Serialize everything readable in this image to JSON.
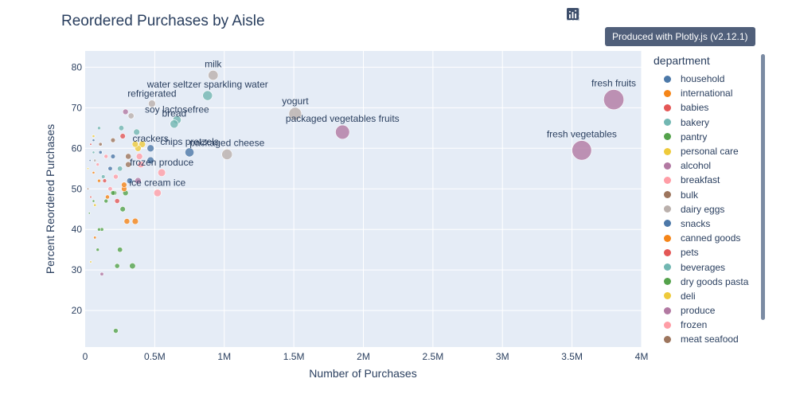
{
  "chart_data": {
    "type": "scatter",
    "title": "Reordered Purchases by Aisle",
    "xlabel": "Number of Purchases",
    "ylabel": "Percent Reordered Purchases",
    "xlim": [
      0,
      4000000
    ],
    "ylim": [
      11,
      84
    ],
    "x_ticks": [
      0,
      500000,
      1000000,
      1500000,
      2000000,
      2500000,
      3000000,
      3500000,
      4000000
    ],
    "x_tick_labels": [
      "0",
      "0.5M",
      "1M",
      "1.5M",
      "2M",
      "2.5M",
      "3M",
      "3.5M",
      "4M"
    ],
    "y_ticks": [
      20,
      30,
      40,
      50,
      60,
      70,
      80
    ],
    "y_tick_labels": [
      "20",
      "30",
      "40",
      "50",
      "60",
      "70",
      "80"
    ],
    "grid": true,
    "legend_title": "department",
    "legend_position": "right",
    "series": [
      {
        "name": "household",
        "color": "#4c78a8",
        "points": [
          [
            110000,
            59
          ],
          [
            180000,
            55
          ],
          [
            60000,
            62
          ],
          [
            35000,
            57
          ]
        ]
      },
      {
        "name": "international",
        "color": "#f58518",
        "points": [
          [
            300000,
            42
          ],
          [
            360000,
            42
          ],
          [
            160000,
            48
          ],
          [
            280000,
            50
          ],
          [
            70000,
            38
          ]
        ]
      },
      {
        "name": "babies",
        "color": "#e45756",
        "points": [
          [
            140000,
            52
          ],
          [
            40000,
            61
          ],
          [
            270000,
            63
          ]
        ]
      },
      {
        "name": "bakery",
        "color": "#72b7b2",
        "points": [
          [
            660000,
            67
          ],
          [
            640000,
            66
          ],
          [
            370000,
            64
          ],
          [
            260000,
            65
          ]
        ]
      },
      {
        "name": "pantry",
        "color": "#54a24b",
        "points": [
          [
            340000,
            31
          ],
          [
            230000,
            31
          ],
          [
            250000,
            35
          ],
          [
            290000,
            49
          ],
          [
            270000,
            45
          ],
          [
            210000,
            49
          ],
          [
            120000,
            40
          ],
          [
            90000,
            35
          ],
          [
            220000,
            15
          ],
          [
            30000,
            44
          ],
          [
            60000,
            47
          ]
        ]
      },
      {
        "name": "personal care",
        "color": "#eeca3b",
        "points": [
          [
            360000,
            61
          ],
          [
            410000,
            61
          ],
          [
            40000,
            32
          ],
          [
            20000,
            55
          ],
          [
            70000,
            46
          ]
        ]
      },
      {
        "name": "alcohol",
        "color": "#b279a2",
        "points": [
          [
            290000,
            69
          ],
          [
            120000,
            29
          ]
        ]
      },
      {
        "name": "breakfast",
        "color": "#ff9da6",
        "points": [
          [
            520000,
            49
          ],
          [
            550000,
            54
          ],
          [
            400000,
            56
          ],
          [
            180000,
            50
          ]
        ]
      },
      {
        "name": "bulk",
        "color": "#9d755d",
        "points": [
          [
            310000,
            56
          ],
          [
            20000,
            50
          ]
        ]
      },
      {
        "name": "dairy eggs",
        "color": "#bab0ac",
        "points": [
          [
            920000,
            78
          ],
          [
            1510000,
            68.5
          ],
          [
            1020000,
            58.5
          ],
          [
            480000,
            71
          ],
          [
            330000,
            68
          ],
          [
            70000,
            57
          ]
        ]
      },
      {
        "name": "snacks",
        "color": "#4c78a8",
        "points": [
          [
            750000,
            59
          ],
          [
            470000,
            60
          ],
          [
            470000,
            57
          ],
          [
            320000,
            52
          ],
          [
            200000,
            58
          ]
        ]
      },
      {
        "name": "canned goods",
        "color": "#f58518",
        "points": [
          [
            280000,
            51
          ],
          [
            100000,
            52
          ],
          [
            60000,
            54
          ]
        ]
      },
      {
        "name": "pets",
        "color": "#e45756",
        "points": [
          [
            230000,
            47
          ],
          [
            40000,
            48
          ]
        ]
      },
      {
        "name": "beverages",
        "color": "#72b7b2",
        "points": [
          [
            880000,
            73
          ],
          [
            250000,
            55
          ],
          [
            130000,
            53
          ],
          [
            100000,
            65
          ],
          [
            60000,
            59
          ]
        ]
      },
      {
        "name": "dry goods pasta",
        "color": "#54a24b",
        "points": [
          [
            200000,
            49
          ],
          [
            150000,
            47
          ],
          [
            100000,
            40
          ]
        ]
      },
      {
        "name": "deli",
        "color": "#eeca3b",
        "points": [
          [
            380000,
            60
          ],
          [
            60000,
            63
          ]
        ]
      },
      {
        "name": "produce",
        "color": "#b279a2",
        "points": [
          [
            3800000,
            72
          ],
          [
            1850000,
            64
          ],
          [
            3570000,
            59.5
          ],
          [
            380000,
            52
          ]
        ]
      },
      {
        "name": "frozen",
        "color": "#ff9da6",
        "points": [
          [
            390000,
            58
          ],
          [
            220000,
            53
          ],
          [
            150000,
            58
          ],
          [
            90000,
            56
          ]
        ]
      },
      {
        "name": "meat seafood",
        "color": "#9d755d",
        "points": [
          [
            310000,
            58
          ],
          [
            200000,
            62
          ],
          [
            110000,
            61
          ]
        ]
      }
    ],
    "annotations": [
      {
        "text": "milk",
        "x": 920000,
        "y": 78
      },
      {
        "text": "water seltzer sparkling water",
        "x": 880000,
        "y": 73
      },
      {
        "text": "yogurt",
        "x": 1510000,
        "y": 68.5
      },
      {
        "text": "soy lactosefree",
        "x": 660000,
        "y": 67
      },
      {
        "text": "bread",
        "x": 640000,
        "y": 66
      },
      {
        "text": "refrigerated",
        "x": 480000,
        "y": 71
      },
      {
        "text": "fresh fruits",
        "x": 3800000,
        "y": 72
      },
      {
        "text": "packaged vegetables fruits",
        "x": 1850000,
        "y": 64
      },
      {
        "text": "fresh vegetables",
        "x": 3570000,
        "y": 59.5
      },
      {
        "text": "chips pretzels",
        "x": 750000,
        "y": 59
      },
      {
        "text": "packaged cheese",
        "x": 1020000,
        "y": 58.5
      },
      {
        "text": "crackers",
        "x": 470000,
        "y": 60
      },
      {
        "text": "frozen produce",
        "x": 550000,
        "y": 54
      },
      {
        "text": "ice cream ice",
        "x": 520000,
        "y": 49
      }
    ]
  },
  "toolbar": {
    "tooltip": "Produced with Plotly.js (v2.12.1)",
    "buttons": [
      "camera-icon",
      "zoom-icon",
      "pan-icon",
      "box-select-icon",
      "lasso-select-icon",
      "zoom-in-icon",
      "zoom-out-icon",
      "autoscale-icon",
      "home-icon",
      "plotly-logo-icon"
    ]
  }
}
